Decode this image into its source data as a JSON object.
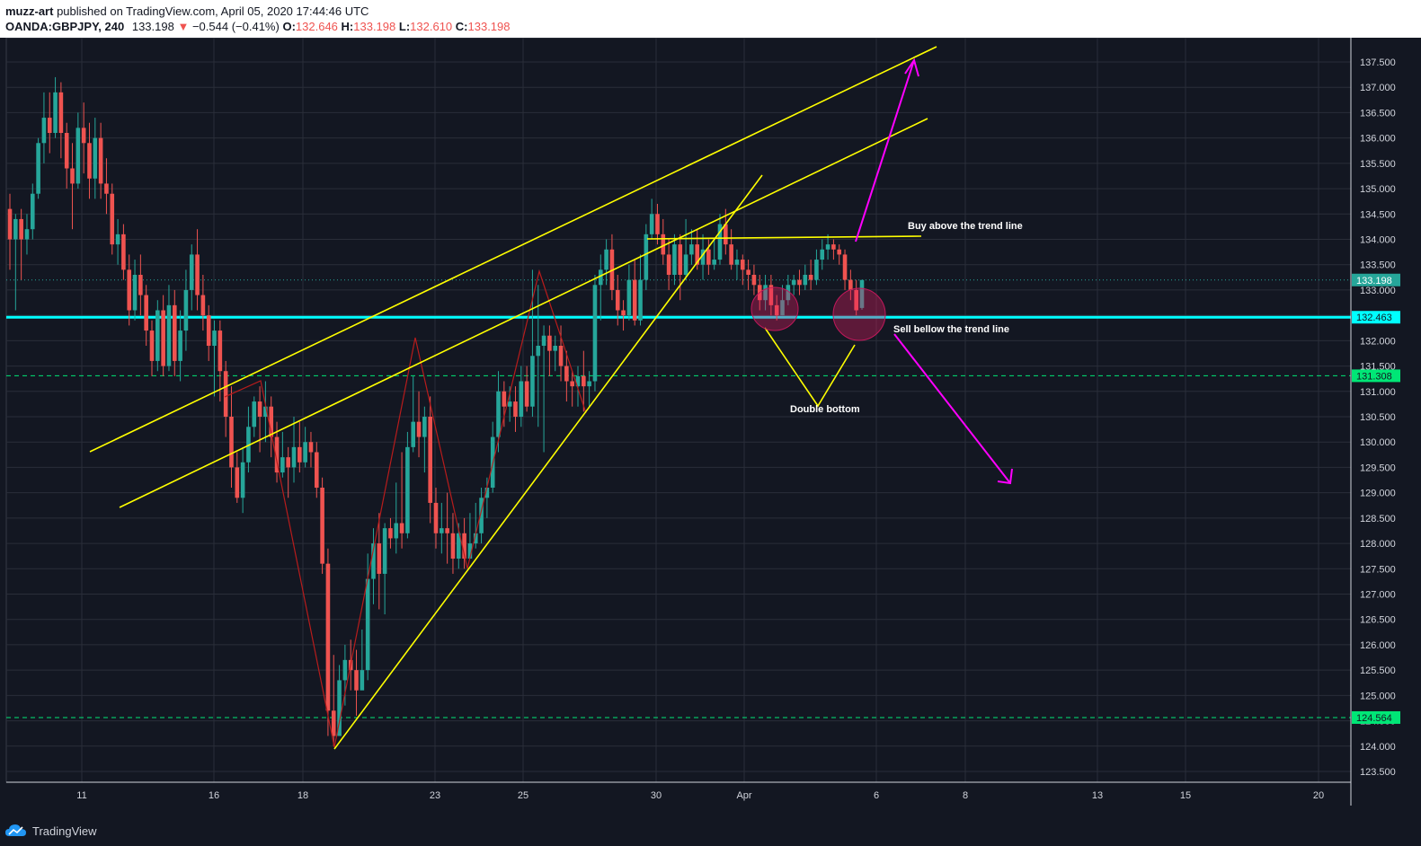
{
  "header": {
    "author": "muzz-art",
    "published_text": "published on TradingView.com, April 05, 2020 17:44:46 UTC",
    "symbol": "OANDA:GBPJPY, 240",
    "last": "133.198",
    "change_arrow": "▼",
    "change": "−0.544 (−0.41%)",
    "o_label": "O:",
    "o_value": "132.646",
    "h_label": "H:",
    "h_value": "133.198",
    "l_label": "L:",
    "l_value": "132.610",
    "c_label": "C:",
    "c_value": "133.198"
  },
  "footer": {
    "logo_icon": "tradingview-cloud-icon",
    "logo_text": "TradingView"
  },
  "colors": {
    "background": "#131722",
    "grid": "#2a2e39",
    "up": "#26a69a",
    "down": "#ef5350",
    "trendline": "#ffff00",
    "support": "#00ffff",
    "arrow": "#ff00ff",
    "zigzag": "#b71c1c",
    "dashed": "#00e676"
  },
  "chart_data": {
    "type": "candlestick",
    "instrument": "OANDA:GBPJPY",
    "timeframe": "240",
    "ylim": [
      123.3,
      137.8
    ],
    "y_ticks": [
      "123.500",
      "124.000",
      "124.500",
      "125.000",
      "125.500",
      "126.000",
      "126.500",
      "127.000",
      "127.500",
      "128.000",
      "128.500",
      "129.000",
      "129.500",
      "130.000",
      "130.500",
      "131.000",
      "131.500",
      "132.000",
      "132.500",
      "133.000",
      "133.500",
      "134.000",
      "134.500",
      "135.000",
      "135.500",
      "136.000",
      "136.500",
      "137.000",
      "137.500"
    ],
    "x_ticks": [
      "11",
      "16",
      "18",
      "23",
      "25",
      "30",
      "Apr",
      "6",
      "8",
      "13",
      "15",
      "20"
    ],
    "price_labels": [
      {
        "label": "133.198",
        "value": 133.198,
        "color": "#26a69a"
      },
      {
        "label": "132.463",
        "value": 132.463,
        "color": "#00ffff"
      },
      {
        "label": "131.308",
        "value": 131.308,
        "color": "#00e676"
      },
      {
        "label": "124.564",
        "value": 124.564,
        "color": "#00e676"
      }
    ],
    "horizontal_lines": [
      {
        "name": "support-line",
        "value": 132.463,
        "style": "solid",
        "color": "#00ffff"
      },
      {
        "name": "dashed-level-upper",
        "value": 131.308,
        "style": "dashed",
        "color": "#00e676"
      },
      {
        "name": "dashed-level-lower",
        "value": 124.564,
        "style": "dashed",
        "color": "#00e676"
      },
      {
        "name": "last-price-line",
        "value": 133.198,
        "style": "dotted",
        "color": "#26a69a"
      }
    ],
    "annotations": [
      {
        "name": "buy-note",
        "text": "Buy above the trend line"
      },
      {
        "name": "sell-note",
        "text": "Sell bellow the trend line"
      },
      {
        "name": "double-bottom-note",
        "text": "Double bottom"
      }
    ],
    "candles": [
      [
        134.6,
        134.0,
        134.9,
        133.4
      ],
      [
        134.0,
        134.4,
        134.5,
        132.6
      ],
      [
        134.4,
        134.0,
        134.6,
        133.2
      ],
      [
        134.0,
        134.2,
        134.5,
        133.7
      ],
      [
        134.2,
        134.9,
        135.1,
        134.0
      ],
      [
        134.9,
        135.9,
        136.0,
        134.8
      ],
      [
        135.9,
        136.4,
        136.9,
        135.5
      ],
      [
        136.4,
        136.1,
        136.9,
        135.7
      ],
      [
        136.1,
        136.9,
        137.2,
        136.0
      ],
      [
        136.9,
        136.1,
        137.1,
        135.6
      ],
      [
        136.1,
        135.4,
        136.3,
        135.0
      ],
      [
        135.4,
        135.1,
        135.9,
        134.2
      ],
      [
        135.1,
        136.2,
        136.5,
        135.0
      ],
      [
        136.2,
        135.9,
        136.7,
        135.3
      ],
      [
        135.9,
        135.2,
        136.3,
        134.8
      ],
      [
        135.2,
        136.0,
        136.4,
        134.8
      ],
      [
        136.0,
        135.1,
        136.3,
        134.8
      ],
      [
        135.1,
        134.9,
        135.6,
        134.5
      ],
      [
        134.9,
        133.9,
        135.1,
        133.7
      ],
      [
        133.9,
        134.1,
        134.4,
        133.5
      ],
      [
        134.1,
        133.4,
        134.3,
        133.2
      ],
      [
        133.4,
        132.6,
        133.7,
        132.3
      ],
      [
        132.6,
        133.3,
        133.6,
        132.4
      ],
      [
        133.3,
        132.9,
        133.7,
        132.5
      ],
      [
        132.9,
        132.2,
        133.1,
        131.9
      ],
      [
        132.2,
        131.6,
        132.4,
        131.3
      ],
      [
        131.6,
        132.6,
        132.8,
        131.4
      ],
      [
        132.6,
        131.5,
        132.9,
        131.3
      ],
      [
        131.5,
        132.7,
        133.1,
        131.4
      ],
      [
        132.7,
        131.6,
        133.0,
        131.3
      ],
      [
        131.6,
        132.2,
        132.6,
        131.2
      ],
      [
        132.2,
        133.0,
        133.4,
        131.8
      ],
      [
        133.0,
        133.7,
        133.9,
        132.6
      ],
      [
        133.7,
        132.9,
        134.2,
        132.6
      ],
      [
        132.9,
        132.5,
        133.3,
        132.2
      ],
      [
        132.5,
        131.9,
        132.7,
        131.6
      ],
      [
        131.9,
        132.2,
        132.4,
        130.9
      ],
      [
        132.2,
        131.4,
        132.4,
        130.8
      ],
      [
        131.4,
        130.5,
        131.6,
        130.1
      ],
      [
        130.5,
        129.5,
        131.1,
        129.1
      ],
      [
        129.5,
        128.9,
        129.8,
        128.8
      ],
      [
        128.9,
        129.6,
        129.9,
        128.6
      ],
      [
        129.6,
        130.3,
        130.7,
        129.4
      ],
      [
        130.3,
        130.8,
        130.9,
        130.1
      ],
      [
        130.8,
        130.5,
        131.1,
        129.8
      ],
      [
        130.5,
        130.7,
        131.2,
        130.0
      ],
      [
        130.7,
        130.1,
        130.9,
        129.7
      ],
      [
        130.1,
        129.4,
        130.4,
        129.2
      ],
      [
        129.4,
        129.7,
        130.2,
        129.3
      ],
      [
        129.7,
        129.5,
        129.9,
        128.9
      ],
      [
        129.5,
        129.9,
        130.5,
        129.2
      ],
      [
        129.9,
        129.6,
        130.4,
        129.4
      ],
      [
        129.6,
        130.0,
        130.3,
        129.5
      ],
      [
        130.0,
        129.8,
        130.2,
        129.5
      ],
      [
        129.8,
        129.1,
        130.0,
        128.9
      ],
      [
        129.1,
        127.6,
        129.3,
        127.4
      ],
      [
        127.6,
        124.7,
        127.9,
        124.2
      ],
      [
        124.7,
        124.2,
        125.8,
        124.0
      ],
      [
        124.2,
        125.3,
        125.6,
        124.3
      ],
      [
        125.3,
        125.7,
        126.0,
        124.8
      ],
      [
        125.7,
        125.5,
        126.1,
        125.1
      ],
      [
        125.5,
        125.1,
        125.9,
        124.6
      ],
      [
        125.1,
        125.5,
        126.3,
        125.2
      ],
      [
        125.5,
        127.3,
        127.8,
        125.3
      ],
      [
        127.3,
        128.0,
        128.3,
        126.8
      ],
      [
        128.0,
        127.4,
        128.6,
        126.7
      ],
      [
        127.4,
        128.3,
        128.4,
        126.6
      ],
      [
        128.3,
        128.1,
        128.5,
        127.9
      ],
      [
        128.1,
        128.4,
        129.2,
        127.8
      ],
      [
        128.4,
        128.2,
        129.8,
        127.9
      ],
      [
        128.2,
        129.9,
        130.2,
        128.1
      ],
      [
        129.9,
        130.4,
        131.3,
        129.8
      ],
      [
        130.4,
        130.1,
        131.0,
        129.7
      ],
      [
        130.1,
        130.5,
        130.7,
        129.4
      ],
      [
        130.5,
        128.8,
        130.9,
        128.4
      ],
      [
        128.8,
        128.2,
        129.1,
        127.9
      ],
      [
        128.2,
        128.3,
        128.8,
        127.8
      ],
      [
        128.3,
        128.2,
        129.0,
        127.6
      ],
      [
        128.2,
        127.7,
        128.6,
        127.4
      ],
      [
        127.7,
        128.2,
        128.4,
        127.5
      ],
      [
        128.2,
        127.7,
        128.5,
        127.5
      ],
      [
        127.7,
        128.0,
        128.6,
        127.8
      ],
      [
        128.0,
        128.2,
        128.8,
        127.9
      ],
      [
        128.2,
        128.9,
        129.1,
        128.0
      ],
      [
        128.9,
        129.1,
        129.3,
        128.5
      ],
      [
        129.1,
        130.1,
        130.4,
        129.0
      ],
      [
        130.1,
        131.0,
        131.4,
        129.8
      ],
      [
        131.0,
        130.7,
        131.2,
        130.3
      ],
      [
        130.7,
        130.8,
        131.1,
        130.4
      ],
      [
        130.8,
        130.5,
        131.1,
        130.2
      ],
      [
        130.5,
        131.2,
        131.5,
        130.3
      ],
      [
        131.2,
        130.7,
        131.5,
        130.6
      ],
      [
        130.7,
        131.7,
        133.4,
        130.5
      ],
      [
        131.7,
        131.9,
        133.1,
        130.3
      ],
      [
        131.9,
        132.1,
        132.3,
        129.8
      ],
      [
        132.1,
        131.8,
        132.3,
        131.3
      ],
      [
        131.8,
        131.9,
        132.1,
        131.4
      ],
      [
        131.9,
        131.5,
        132.3,
        131.2
      ],
      [
        131.5,
        131.2,
        131.8,
        130.8
      ],
      [
        131.2,
        131.1,
        131.4,
        130.7
      ],
      [
        131.1,
        131.3,
        131.5,
        130.7
      ],
      [
        131.3,
        131.1,
        131.8,
        130.6
      ],
      [
        131.1,
        131.2,
        131.4,
        130.7
      ],
      [
        131.2,
        133.1,
        133.3,
        131.0
      ],
      [
        133.1,
        133.4,
        133.7,
        132.4
      ],
      [
        133.4,
        133.8,
        134.0,
        133.1
      ],
      [
        133.8,
        133.0,
        134.1,
        132.8
      ],
      [
        133.0,
        132.6,
        133.3,
        132.3
      ],
      [
        132.6,
        132.5,
        132.8,
        132.2
      ],
      [
        132.5,
        133.2,
        133.5,
        132.4
      ],
      [
        133.2,
        132.4,
        133.6,
        132.3
      ],
      [
        132.4,
        133.2,
        133.7,
        132.3
      ],
      [
        133.2,
        134.1,
        134.3,
        133.0
      ],
      [
        134.1,
        134.5,
        134.8,
        134.0
      ],
      [
        134.5,
        134.1,
        134.7,
        133.9
      ],
      [
        134.1,
        133.7,
        134.4,
        133.5
      ],
      [
        133.7,
        133.3,
        134.0,
        133.0
      ],
      [
        133.3,
        133.9,
        134.1,
        133.1
      ],
      [
        133.9,
        133.3,
        134.1,
        132.8
      ],
      [
        133.3,
        133.7,
        134.4,
        133.2
      ],
      [
        133.7,
        133.9,
        134.2,
        133.5
      ],
      [
        133.9,
        133.5,
        134.2,
        133.4
      ],
      [
        133.5,
        133.8,
        134.1,
        133.2
      ],
      [
        133.8,
        133.5,
        134.0,
        133.3
      ],
      [
        133.5,
        133.6,
        134.0,
        133.4
      ],
      [
        133.6,
        134.3,
        134.5,
        133.5
      ],
      [
        134.3,
        133.9,
        134.6,
        133.7
      ],
      [
        133.9,
        133.5,
        134.2,
        133.4
      ],
      [
        133.5,
        133.6,
        133.8,
        133.2
      ],
      [
        133.6,
        133.4,
        133.7,
        133.1
      ],
      [
        133.4,
        133.3,
        133.6,
        133.0
      ],
      [
        133.3,
        133.1,
        133.5,
        132.9
      ],
      [
        133.1,
        132.8,
        133.3,
        132.6
      ],
      [
        132.8,
        133.1,
        133.3,
        132.6
      ],
      [
        133.1,
        132.7,
        133.3,
        132.5
      ],
      [
        132.7,
        132.5,
        132.9,
        132.4
      ],
      [
        132.5,
        132.8,
        133.1,
        132.5
      ],
      [
        132.8,
        133.1,
        133.3,
        132.7
      ],
      [
        133.1,
        133.2,
        133.3,
        132.9
      ],
      [
        133.2,
        133.1,
        133.4,
        132.9
      ],
      [
        133.1,
        133.3,
        133.5,
        133.0
      ],
      [
        133.3,
        133.2,
        133.6,
        133.0
      ],
      [
        133.2,
        133.6,
        133.8,
        133.1
      ],
      [
        133.6,
        133.8,
        134.0,
        133.4
      ],
      [
        133.8,
        133.9,
        134.1,
        133.6
      ],
      [
        133.9,
        133.8,
        134.0,
        133.6
      ],
      [
        133.8,
        133.7,
        133.9,
        133.5
      ],
      [
        133.7,
        133.2,
        133.8,
        133.0
      ],
      [
        133.2,
        133.0,
        133.4,
        132.8
      ],
      [
        133.0,
        132.6,
        133.2,
        132.5
      ],
      [
        132.646,
        133.198,
        133.198,
        132.61
      ]
    ]
  }
}
